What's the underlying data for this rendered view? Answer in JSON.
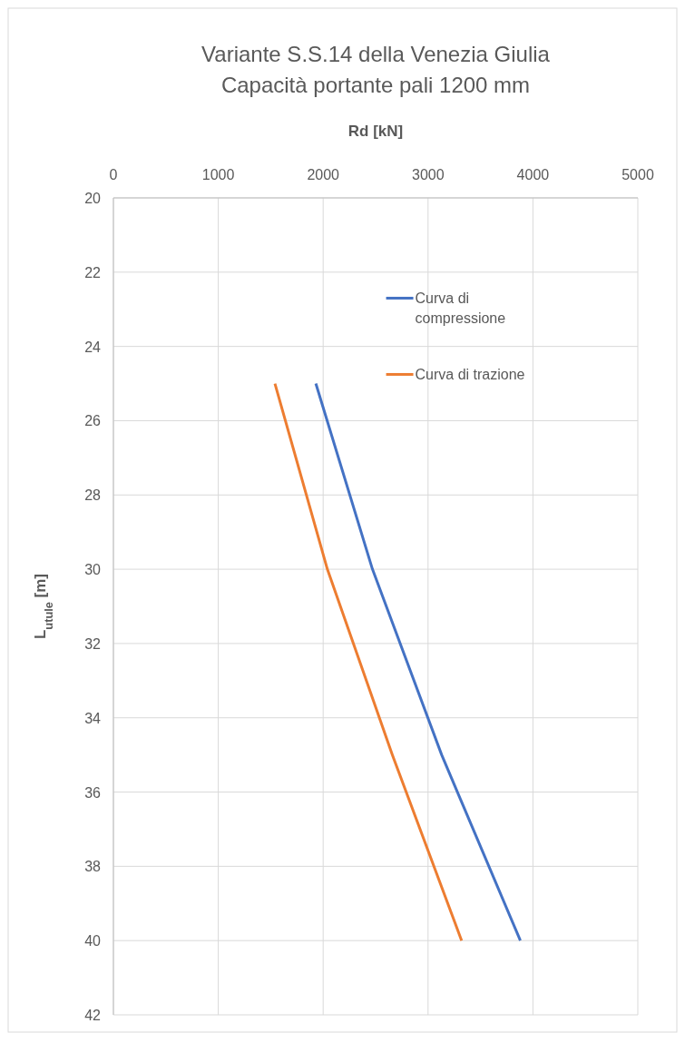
{
  "chart_data": {
    "type": "line",
    "title": "Variante S.S.14 della Venezia Giulia\nCapacità portante pali 1200 mm",
    "xlabel": "Rd [kN]",
    "ylabel": "L$_{utule}$ [m]",
    "xlim": [
      0,
      5000
    ],
    "xticks": [
      0,
      1000,
      2000,
      3000,
      4000,
      5000
    ],
    "ylim": [
      42,
      20
    ],
    "yticks": [
      20,
      22,
      24,
      26,
      28,
      30,
      32,
      34,
      36,
      38,
      40,
      42
    ],
    "grid": true,
    "legend": "top right",
    "line_style": "solid",
    "marker": "none",
    "series": [
      {
        "name": "Curva di compressione",
        "color": "#4472c4",
        "x": [
          1930,
          2470,
          3130,
          3880
        ],
        "values": [
          25,
          30,
          35,
          40
        ]
      },
      {
        "name": "Curva di trazione",
        "color": "#ed7d31",
        "x": [
          1540,
          2040,
          2660,
          3320
        ],
        "values": [
          25,
          30,
          35,
          40
        ]
      }
    ]
  }
}
